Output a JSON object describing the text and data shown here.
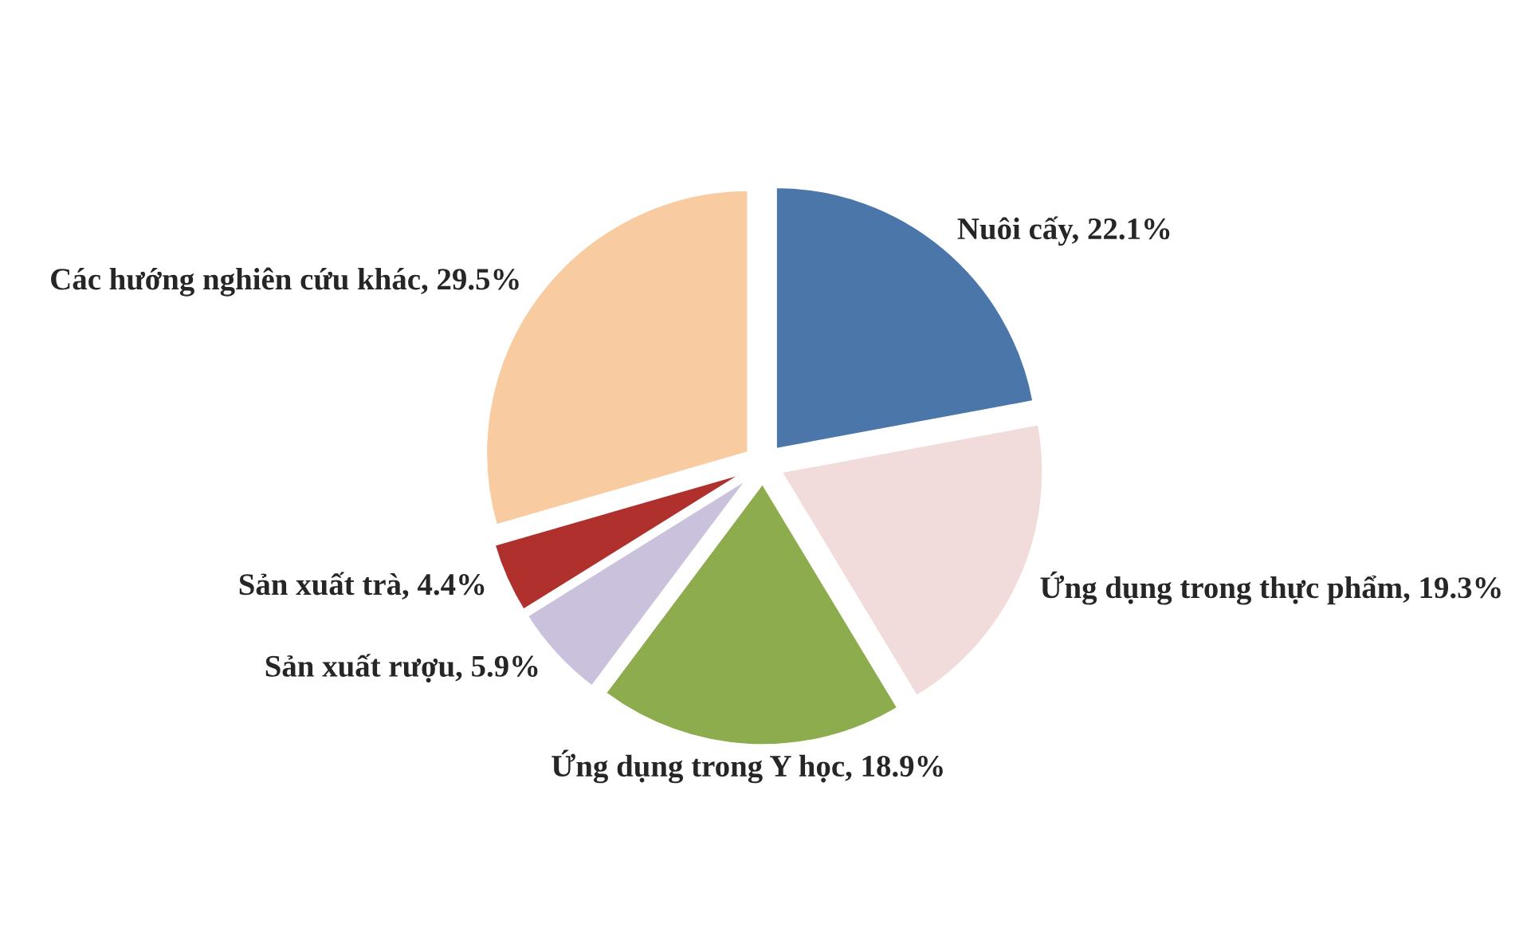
{
  "chart_data": {
    "type": "pie",
    "categories": [
      "Nuôi cấy",
      "Ứng dụng trong thực phẩm",
      "Ứng dụng trong Y học",
      "Sản xuất rượu",
      "Sản xuất trà",
      "Các hướng nghiên cứu khác"
    ],
    "values": [
      22.1,
      19.3,
      18.9,
      5.9,
      4.4,
      29.5
    ],
    "value_labels": [
      "22.1%",
      "19.3%",
      "18.9%",
      "5.9%",
      "4.4%",
      "29.5%"
    ],
    "colors": [
      "#4a76aa",
      "#f2dcdb",
      "#8cac4e",
      "#cac2dc",
      "#b0302e",
      "#f9cba0"
    ]
  }
}
